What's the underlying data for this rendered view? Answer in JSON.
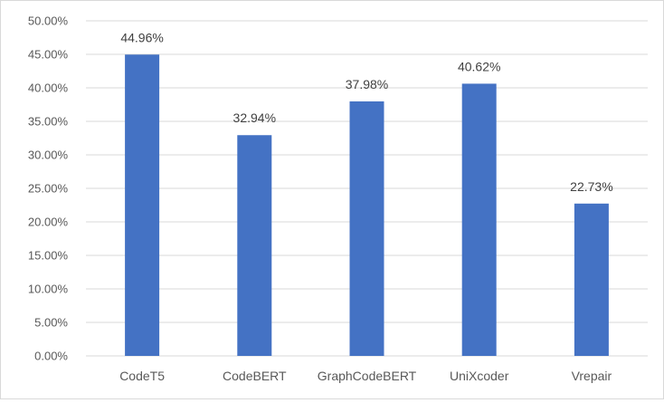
{
  "chart_data": {
    "type": "bar",
    "title": "",
    "xlabel": "",
    "ylabel": "",
    "categories": [
      "CodeT5",
      "CodeBERT",
      "GraphCodeBERT",
      "UniXcoder",
      "Vrepair"
    ],
    "values": [
      44.96,
      32.94,
      37.98,
      40.62,
      22.73
    ],
    "data_labels": [
      "44.96%",
      "32.94%",
      "37.98%",
      "40.62%",
      "22.73%"
    ],
    "ylim": [
      0,
      50
    ],
    "yticks": [
      0,
      5,
      10,
      15,
      20,
      25,
      30,
      35,
      40,
      45,
      50
    ],
    "ytick_labels": [
      "0.00%",
      "5.00%",
      "10.00%",
      "15.00%",
      "20.00%",
      "25.00%",
      "30.00%",
      "35.00%",
      "40.00%",
      "45.00%",
      "50.00%"
    ],
    "grid": true,
    "legend": "none",
    "colors": {
      "bar": "#4472c4",
      "grid": "#d9d9d9",
      "axis": "#d9d9d9"
    }
  }
}
